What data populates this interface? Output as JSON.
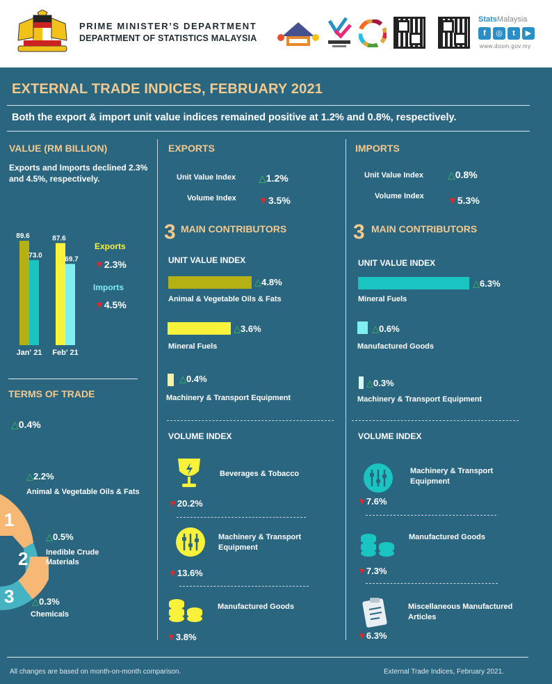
{
  "header": {
    "line1": "PRIME MINISTER’S DEPARTMENT",
    "line2": "DEPARTMENT OF STATISTICS MALAYSIA",
    "stats_brand": "Stats",
    "stats_brand2": "Malaysia",
    "site": "www.dosm.gov.my",
    "social": [
      "f",
      "◎",
      "t",
      "▶"
    ]
  },
  "title": "EXTERNAL TRADE INDICES, FEBRUARY 2021",
  "subtitle": "Both the export & import unit value indices remained positive at 1.2% and 0.8%, respectively.",
  "value": {
    "heading": "VALUE (RM BILLION)",
    "desc": "Exports and Imports declined 2.3% and 4.5%, respectively.",
    "chart_data": {
      "type": "bar",
      "categories": [
        "Jan' 21",
        "Feb' 21"
      ],
      "series": [
        {
          "name": "Exports",
          "values": [
            89.6,
            87.6
          ]
        },
        {
          "name": "Imports",
          "values": [
            73.0,
            69.7
          ]
        }
      ],
      "labels": [
        "89.6",
        "73.0",
        "87.6",
        "69.7"
      ],
      "ylim": [
        0,
        89.6
      ]
    },
    "exports_label": "Exports",
    "exports_change": "2.3%",
    "imports_label": "Imports",
    "imports_change": "4.5%"
  },
  "terms": {
    "heading": "TERMS OF TRADE",
    "overall": "0.4%",
    "items": [
      {
        "rank": "1",
        "change": "2.2%",
        "label": "Animal & Vegetable Oils & Fats"
      },
      {
        "rank": "2",
        "change": "0.5%",
        "label": "Inedible Crude Materials"
      },
      {
        "rank": "3",
        "change": "0.3%",
        "label": "Chemicals"
      }
    ]
  },
  "exports": {
    "heading": "EXPORTS",
    "uvi_label": "Unit Value Index",
    "uvi_change": "1.2%",
    "vol_label": "Volume Index",
    "vol_change": "3.5%",
    "contrib_num": "3",
    "contrib_heading": "MAIN CONTRIBUTORS",
    "uvi_heading": "UNIT VALUE INDEX",
    "uvi_items": [
      {
        "label": "Animal & Vegetable Oils & Fats",
        "change": "4.8%",
        "value": 4.8
      },
      {
        "label": "Mineral Fuels",
        "change": "3.6%",
        "value": 3.6
      },
      {
        "label": "Machinery & Transport Equipment",
        "change": "0.4%",
        "value": 0.4
      }
    ],
    "vol_heading": "VOLUME INDEX",
    "vol_items": [
      {
        "label": "Beverages & Tobacco",
        "change": "20.2%",
        "icon": "goblet-icon"
      },
      {
        "label": "Machinery & Transport Equipment",
        "change": "13.6%",
        "icon": "machinery-icon"
      },
      {
        "label": "Manufactured Goods",
        "change": "3.8%",
        "icon": "stack-icon"
      }
    ]
  },
  "imports": {
    "heading": "IMPORTS",
    "uvi_label": "Unit Value Index",
    "uvi_change": "0.8%",
    "vol_label": "Volume Index",
    "vol_change": "5.3%",
    "contrib_num": "3",
    "contrib_heading": "MAIN CONTRIBUTORS",
    "uvi_heading": "UNIT VALUE INDEX",
    "uvi_items": [
      {
        "label": "Mineral Fuels",
        "change": "6.3%",
        "value": 6.3
      },
      {
        "label": "Manufactured Goods",
        "change": "0.6%",
        "value": 0.6
      },
      {
        "label": "Machinery & Transport Equipment",
        "change": "0.3%",
        "value": 0.3
      }
    ],
    "vol_heading": "VOLUME INDEX",
    "vol_items": [
      {
        "label": "Machinery & Transport Equipment",
        "change": "7.6%",
        "icon": "machinery-icon"
      },
      {
        "label": "Manufactured Goods",
        "change": "7.3%",
        "icon": "stack-icon"
      },
      {
        "label": "Miscellaneous Manufactured Articles",
        "change": "6.3%",
        "icon": "clipboard-icon"
      }
    ]
  },
  "footer": {
    "left": "All changes are based on month-on-month comparison.",
    "right": "External Trade Indices, February 2021."
  },
  "colors": {
    "background": "#2b6681",
    "accent": "#f2c98e",
    "exports_bar_dark": "#b5b014",
    "exports_bar_light": "#f8f33a",
    "imports_bar": "#19c4c1",
    "imports_bar_light": "#7ff0ef",
    "up": "#3fbf5e",
    "down": "#e3262a"
  }
}
